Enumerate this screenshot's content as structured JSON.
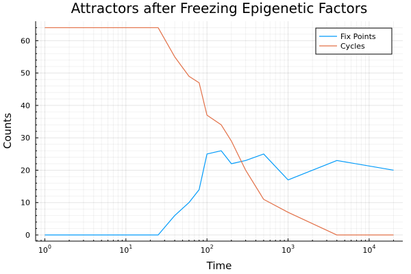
{
  "chart_data": {
    "type": "line",
    "title": "Attractors after Freezing Epigenetic Factors",
    "xlabel": "Time",
    "ylabel": "Counts",
    "xscale": "log10",
    "xlim": [
      0.77,
      26000
    ],
    "ylim": [
      -1.9,
      66
    ],
    "x_ticks": [
      {
        "base": "10",
        "exp": "0",
        "value": 1
      },
      {
        "base": "10",
        "exp": "1",
        "value": 10
      },
      {
        "base": "10",
        "exp": "2",
        "value": 100
      },
      {
        "base": "10",
        "exp": "3",
        "value": 1000
      },
      {
        "base": "10",
        "exp": "4",
        "value": 10000
      }
    ],
    "y_ticks": [
      "0",
      "10",
      "20",
      "30",
      "40",
      "50",
      "60"
    ],
    "grid": true,
    "legend": "top-right",
    "series": [
      {
        "name": "Fix Points",
        "color": "#009AFA",
        "x": [
          1,
          25,
          40,
          60,
          80,
          100,
          150,
          200,
          300,
          500,
          1000,
          4000,
          20000
        ],
        "y": [
          0,
          0,
          6,
          10,
          14,
          25,
          26,
          22,
          23,
          25,
          17,
          23,
          20
        ]
      },
      {
        "name": "Cycles",
        "color": "#E26F46",
        "x": [
          1,
          25,
          40,
          60,
          80,
          100,
          150,
          200,
          300,
          500,
          1000,
          4000,
          20000
        ],
        "y": [
          64,
          64,
          55,
          49,
          47,
          37,
          34,
          29,
          20,
          11,
          7,
          0,
          0
        ]
      }
    ]
  }
}
